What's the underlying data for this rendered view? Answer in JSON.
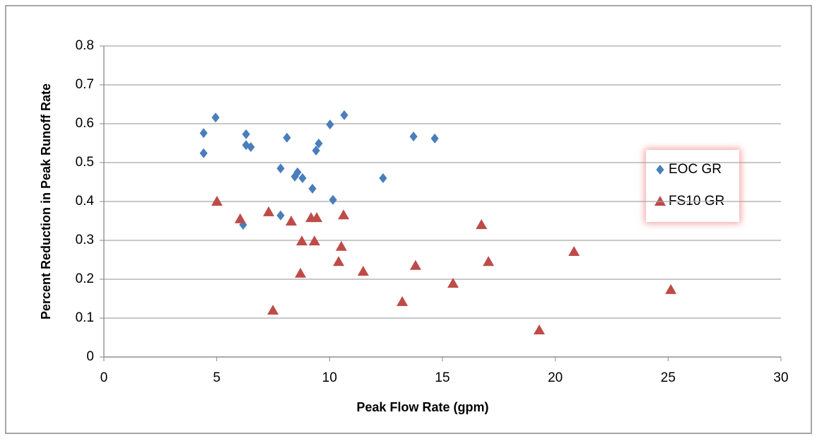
{
  "chart_data": {
    "type": "scatter",
    "x_label": "Peak Flow Rate (gpm)",
    "y_label": "Percent Reduction in Peak Runoff Rate",
    "xlim": [
      0,
      30
    ],
    "xticks": [
      0,
      5,
      10,
      15,
      20,
      25,
      30
    ],
    "ylim": [
      0,
      0.8
    ],
    "yticks": [
      0,
      0.1,
      0.2,
      0.3,
      0.4,
      0.5,
      0.6,
      0.7,
      0.8
    ],
    "grid": true,
    "legend": "right",
    "series": [
      {
        "name": "EOC GR",
        "color": "#4a7ebb",
        "marker": "diamond",
        "x": [
          4.42,
          4.42,
          4.95,
          6.3,
          6.3,
          6.51,
          6.17,
          7.83,
          7.83,
          8.11,
          8.46,
          8.58,
          8.8,
          9.24,
          9.4,
          9.52,
          10.02,
          10.15,
          10.65,
          12.37,
          13.72,
          14.66
        ],
        "values": [
          0.576,
          0.524,
          0.616,
          0.573,
          0.545,
          0.54,
          0.34,
          0.485,
          0.364,
          0.564,
          0.464,
          0.475,
          0.46,
          0.433,
          0.531,
          0.549,
          0.598,
          0.404,
          0.622,
          0.46,
          0.567,
          0.562
        ]
      },
      {
        "name": "FS10 GR",
        "color": "#be4b48",
        "marker": "triangle",
        "x": [
          5.01,
          6.04,
          7.3,
          7.49,
          8.3,
          8.71,
          8.77,
          9.18,
          9.43,
          9.33,
          10.4,
          10.52,
          10.62,
          11.49,
          13.22,
          13.81,
          15.47,
          16.73,
          17.04,
          19.29,
          20.83,
          25.12
        ],
        "values": [
          0.4,
          0.355,
          0.373,
          0.12,
          0.349,
          0.215,
          0.298,
          0.358,
          0.358,
          0.298,
          0.245,
          0.284,
          0.365,
          0.22,
          0.142,
          0.235,
          0.189,
          0.34,
          0.245,
          0.069,
          0.271,
          0.173
        ]
      }
    ]
  }
}
